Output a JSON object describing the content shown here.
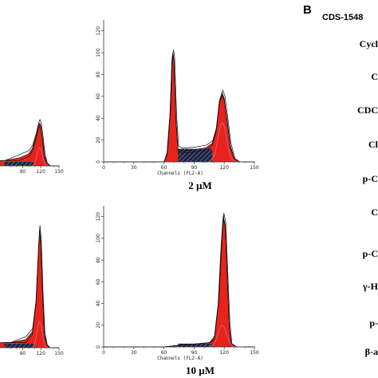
{
  "panel_b": {
    "letter": "B",
    "cell_line": "CDS-1548",
    "blot_labels": [
      "Cycl",
      "C",
      "CDC",
      "Cl",
      "p-C",
      "C",
      "p-C",
      "γ-H",
      "p-",
      "β-a"
    ]
  },
  "chart_data": [
    {
      "type": "area",
      "panel": "left-top",
      "title": "",
      "xlabel": "",
      "ylabel": "",
      "x_ticks": [
        "90",
        "120",
        "150"
      ],
      "y_ticks": [],
      "xlim": [
        0,
        150
      ],
      "ylim": [
        0,
        100
      ],
      "grid": false,
      "series": [
        {
          "values": [
            [
              0,
              4
            ],
            [
              60,
              4
            ],
            [
              85,
              6
            ],
            [
              100,
              9
            ],
            [
              106,
              13
            ],
            [
              112,
              22
            ],
            [
              116,
              30
            ],
            [
              118,
              32
            ],
            [
              120,
              30
            ],
            [
              123,
              20
            ],
            [
              126,
              8
            ],
            [
              130,
              2
            ],
            [
              136,
              0
            ],
            [
              150,
              0
            ]
          ]
        }
      ]
    },
    {
      "type": "area",
      "panel": "right-top",
      "title": "",
      "xlabel": "Channels (FL2-A)",
      "ylabel": "",
      "condition": "2 µM",
      "x_ticks": [
        "0",
        "30",
        "60",
        "90",
        "120",
        "150"
      ],
      "y_ticks": [
        "0",
        "20",
        "40",
        "60",
        "80",
        "100",
        "120"
      ],
      "xlim": [
        0,
        150
      ],
      "ylim": [
        0,
        130
      ],
      "grid": false,
      "series": [
        {
          "values": [
            [
              0,
              0
            ],
            [
              50,
              0
            ],
            [
              60,
              0
            ],
            [
              63,
              8
            ],
            [
              66,
              45
            ],
            [
              68,
              95
            ],
            [
              69,
              100
            ],
            [
              70,
              93
            ],
            [
              72,
              40
            ],
            [
              74,
              12
            ],
            [
              78,
              10
            ],
            [
              90,
              11
            ],
            [
              102,
              13
            ],
            [
              108,
              17
            ],
            [
              112,
              30
            ],
            [
              115,
              55
            ],
            [
              118,
              63
            ],
            [
              120,
              58
            ],
            [
              123,
              38
            ],
            [
              126,
              15
            ],
            [
              130,
              3
            ],
            [
              135,
              0
            ],
            [
              150,
              0
            ]
          ]
        }
      ]
    },
    {
      "type": "area",
      "panel": "left-bottom",
      "title": "",
      "xlabel": "",
      "ylabel": "",
      "x_ticks": [
        "90",
        "120",
        "150"
      ],
      "y_ticks": [],
      "xlim": [
        0,
        150
      ],
      "ylim": [
        0,
        100
      ],
      "grid": false,
      "series": [
        {
          "values": [
            [
              0,
              3
            ],
            [
              70,
              4
            ],
            [
              95,
              6
            ],
            [
              106,
              12
            ],
            [
              112,
              35
            ],
            [
              116,
              75
            ],
            [
              118,
              90
            ],
            [
              120,
              80
            ],
            [
              123,
              40
            ],
            [
              126,
              10
            ],
            [
              130,
              2
            ],
            [
              135,
              0
            ],
            [
              150,
              0
            ]
          ]
        }
      ]
    },
    {
      "type": "area",
      "panel": "right-bottom",
      "title": "",
      "xlabel": "Channels (FL2-A)",
      "ylabel": "",
      "condition": "10 µM",
      "x_ticks": [
        "0",
        "30",
        "60",
        "90",
        "120",
        "150"
      ],
      "y_ticks": [
        "0",
        "20",
        "40",
        "60",
        "80",
        "100",
        "120"
      ],
      "xlim": [
        0,
        150
      ],
      "ylim": [
        0,
        130
      ],
      "grid": false,
      "series": [
        {
          "values": [
            [
              0,
              0
            ],
            [
              60,
              0
            ],
            [
              70,
              1
            ],
            [
              80,
              2
            ],
            [
              95,
              3
            ],
            [
              105,
              4
            ],
            [
              110,
              8
            ],
            [
              114,
              40
            ],
            [
              117,
              95
            ],
            [
              119,
              121
            ],
            [
              121,
              112
            ],
            [
              123,
              65
            ],
            [
              125,
              20
            ],
            [
              127,
              3
            ],
            [
              132,
              0
            ],
            [
              150,
              0
            ]
          ]
        }
      ]
    }
  ]
}
